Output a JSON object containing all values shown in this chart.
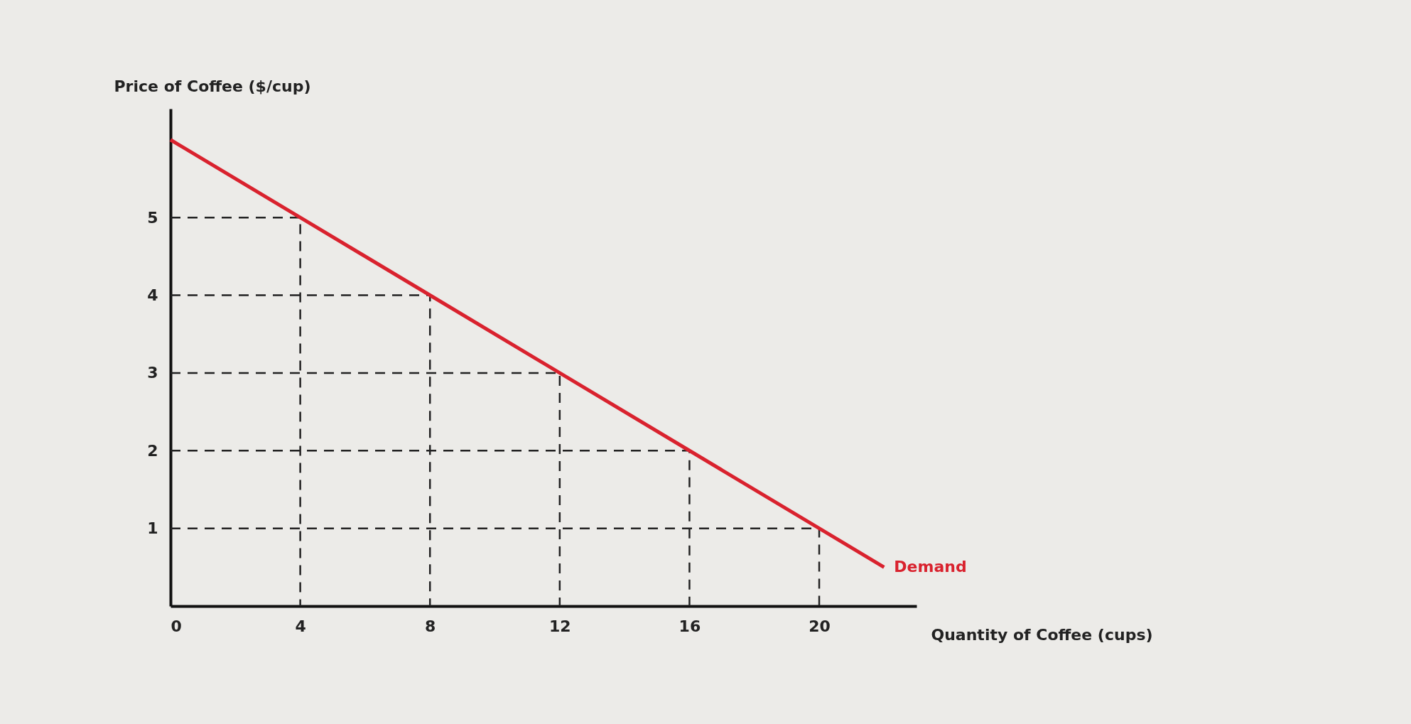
{
  "chart_data": {
    "type": "line",
    "xlabel": "Quantity of Coffee (cups)",
    "ylabel": "Price of Coffee ($/cup)",
    "xlim": [
      0,
      23
    ],
    "ylim": [
      0,
      6.4
    ],
    "xticks": [
      0,
      4,
      8,
      12,
      16,
      20
    ],
    "yticks": [
      1,
      2,
      3,
      4,
      5
    ],
    "series": [
      {
        "color": "#222222",
        "line_style": "dashed",
        "x": [
          0,
          4,
          4
        ],
        "values": [
          5,
          5,
          0
        ]
      },
      {
        "color": "#222222",
        "line_style": "dashed",
        "x": [
          0,
          8,
          8
        ],
        "values": [
          4,
          4,
          0
        ]
      },
      {
        "color": "#222222",
        "line_style": "dashed",
        "x": [
          0,
          12,
          12
        ],
        "values": [
          3,
          3,
          0
        ]
      },
      {
        "color": "#222222",
        "line_style": "dashed",
        "x": [
          0,
          16,
          16
        ],
        "values": [
          2,
          2,
          0
        ]
      },
      {
        "color": "#222222",
        "line_style": "dashed",
        "x": [
          0,
          20,
          20
        ],
        "values": [
          1,
          1,
          0
        ]
      },
      {
        "name": "Demand",
        "color": "#d9222e",
        "line_style": "solid",
        "x": [
          0,
          4,
          8,
          12,
          16,
          20,
          22
        ],
        "values": [
          6,
          5,
          4,
          3,
          2,
          1,
          0.5
        ]
      }
    ]
  }
}
